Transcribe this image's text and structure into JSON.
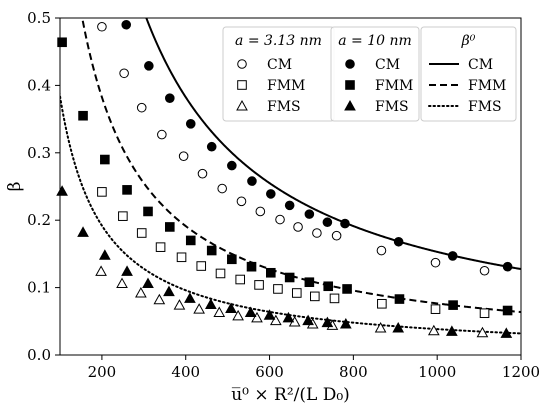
{
  "chart_data": {
    "type": "scatter",
    "xlabel": "u̅⁰ × R²/(L D₀)",
    "ylabel": "β",
    "xlim": [
      100,
      1200
    ],
    "ylim": [
      0.0,
      0.5
    ],
    "xticks": [
      "200",
      "400",
      "600",
      "800",
      "1000",
      "1200"
    ],
    "yticks": [
      "0.0",
      "0.1",
      "0.2",
      "0.3",
      "0.4",
      "0.5"
    ],
    "legend_placement": "top-right",
    "legend_groups": [
      {
        "title": "a = 3.13 nm",
        "items": [
          "CM",
          "FMM",
          "FMS"
        ]
      },
      {
        "title": "a = 10 nm",
        "items": [
          "CM",
          "FMM",
          "FMS"
        ]
      },
      {
        "title": "β⁰",
        "items": [
          "CM",
          "FMM",
          "FMS"
        ]
      }
    ],
    "series": [
      {
        "name": "CM",
        "group": "a = 3.13 nm",
        "marker": "circle-open",
        "x": [
          200,
          253,
          295,
          343,
          395,
          440,
          487,
          533,
          578,
          625,
          668,
          713,
          760,
          867,
          996,
          1113
        ],
        "y": [
          0.487,
          0.418,
          0.367,
          0.327,
          0.295,
          0.269,
          0.247,
          0.228,
          0.213,
          0.201,
          0.19,
          0.181,
          0.177,
          0.155,
          0.137,
          0.125
        ]
      },
      {
        "name": "FMM",
        "group": "a = 3.13 nm",
        "marker": "square-open",
        "x": [
          200,
          250,
          295,
          340,
          390,
          437,
          483,
          530,
          575,
          620,
          665,
          708,
          755,
          868,
          996,
          1113
        ],
        "y": [
          0.242,
          0.206,
          0.181,
          0.16,
          0.145,
          0.132,
          0.121,
          0.112,
          0.104,
          0.098,
          0.092,
          0.087,
          0.084,
          0.076,
          0.068,
          0.062
        ]
      },
      {
        "name": "FMS",
        "group": "a = 3.13 nm",
        "marker": "triangle-open",
        "x": [
          198,
          248,
          293,
          337,
          385,
          432,
          480,
          525,
          570,
          615,
          660,
          703,
          750,
          865,
          992,
          1108
        ],
        "y": [
          0.124,
          0.106,
          0.092,
          0.082,
          0.074,
          0.068,
          0.063,
          0.058,
          0.055,
          0.051,
          0.049,
          0.046,
          0.044,
          0.04,
          0.036,
          0.033
        ]
      },
      {
        "name": "CM",
        "group": "a = 10 nm",
        "marker": "circle-filled",
        "x": [
          258,
          312,
          362,
          412,
          462,
          510,
          558,
          603,
          648,
          695,
          738,
          780,
          908,
          1037,
          1168
        ],
        "y": [
          0.49,
          0.429,
          0.381,
          0.343,
          0.309,
          0.281,
          0.258,
          0.239,
          0.222,
          0.209,
          0.197,
          0.195,
          0.168,
          0.147,
          0.131
        ]
      },
      {
        "name": "FMM",
        "group": "a = 10 nm",
        "marker": "square-filled",
        "x": [
          105,
          155,
          207,
          260,
          310,
          362,
          412,
          462,
          510,
          557,
          603,
          648,
          695,
          740,
          785,
          910,
          1038,
          1168
        ],
        "y": [
          0.464,
          0.355,
          0.29,
          0.245,
          0.213,
          0.19,
          0.17,
          0.155,
          0.142,
          0.131,
          0.122,
          0.115,
          0.108,
          0.102,
          0.098,
          0.083,
          0.074,
          0.066
        ]
      },
      {
        "name": "FMS",
        "group": "a = 10 nm",
        "marker": "triangle-filled",
        "x": [
          105,
          155,
          207,
          260,
          310,
          360,
          410,
          460,
          508,
          555,
          600,
          645,
          692,
          738,
          782,
          907,
          1035,
          1165
        ],
        "y": [
          0.243,
          0.182,
          0.148,
          0.124,
          0.106,
          0.094,
          0.084,
          0.075,
          0.069,
          0.063,
          0.059,
          0.055,
          0.051,
          0.048,
          0.046,
          0.04,
          0.035,
          0.032
        ]
      },
      {
        "name": "CM",
        "group": "β⁰",
        "line": "solid",
        "k": 153
      },
      {
        "name": "FMM",
        "group": "β⁰",
        "line": "dashed",
        "k": 76.5
      },
      {
        "name": "FMS",
        "group": "β⁰",
        "line": "dotted",
        "k": 38.4
      }
    ]
  }
}
